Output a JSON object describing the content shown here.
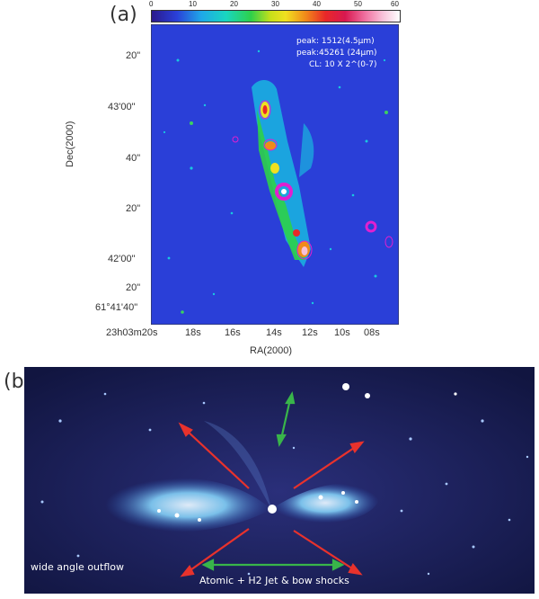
{
  "panel_a": {
    "label": "(a)",
    "colorbar": {
      "ticks": [
        "0",
        "10",
        "20",
        "30",
        "40",
        "50",
        "60"
      ]
    },
    "overlay_lines": [
      "peak: 1512(4.5μm)",
      "peak:45261 (24μm)",
      "CL: 10 X 2^(0-7)"
    ],
    "y_ticks": [
      "20\"",
      "43'00\"",
      "40\"",
      "20\"",
      "42'00\"",
      "20\"",
      "61°41'40\""
    ],
    "y_axis_label": "Dec(2000)",
    "x_ticks": [
      "23h03m20s",
      "18s",
      "16s",
      "14s",
      "12s",
      "10s",
      "08s"
    ],
    "x_axis_label": "RA(2000)"
  },
  "panel_b": {
    "label": "(b)",
    "left_annotation": "wide angle outflow",
    "bottom_annotation": "Atomic + H2 Jet & bow shocks"
  },
  "colors": {
    "red_arrow": "#e8322c",
    "green_arrow": "#39b54a",
    "contour": "#e020d0",
    "map_bg": "#2a3fd8"
  }
}
